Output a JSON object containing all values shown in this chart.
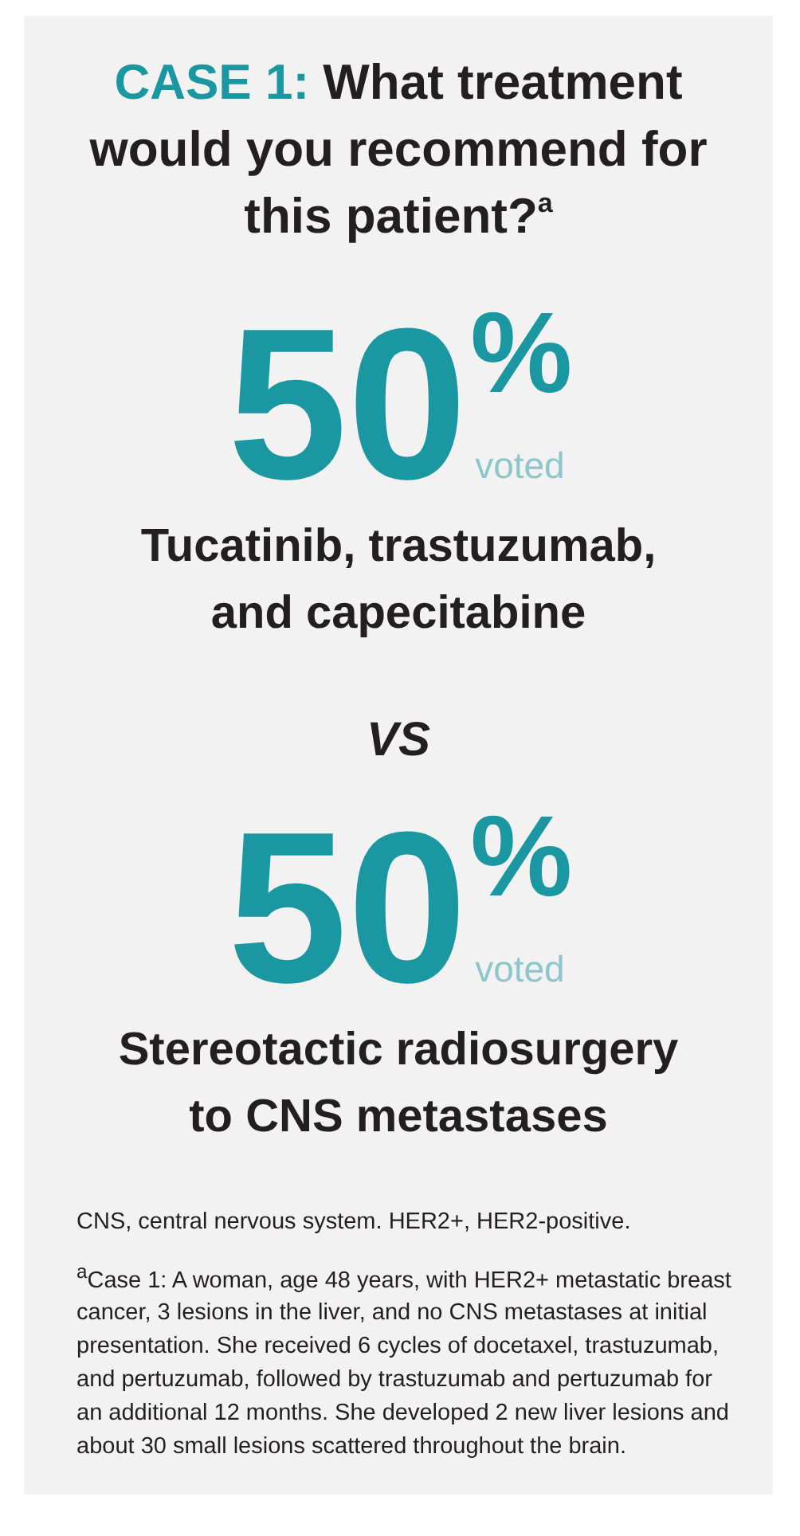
{
  "chart_data": {
    "type": "other",
    "title": "CASE 1: What treatment would you recommend for this patient?$^{a}$",
    "categories": [
      "Tucatinib, trastuzumab, and capecitabine",
      "Stereotactic radiosurgery to CNS metastases"
    ],
    "values": [
      50,
      50
    ],
    "data_labels": true,
    "colors": [
      "#1a97a0",
      "#1a97a0"
    ],
    "annotations": [
      {
        "text": "%",
        "x": "Tucatinib, trastuzumab, and capecitabine"
      },
      {
        "text": "voted",
        "x": "Tucatinib, trastuzumab, and capecitabine"
      },
      "VS",
      {
        "text": "%",
        "x": "Stereotactic radiosurgery to CNS metastases"
      },
      {
        "text": "voted",
        "x": "Stereotactic radiosurgery to CNS metastases"
      },
      "CNS, central nervous system. HER2+, HER2-positive.",
      "$^{a}$Case 1: A woman, age 48 years, with HER2+ metastatic breast cancer, 3 lesions in the liver, and no CNS metastases at initial presentation. She received 6 cycles of docetaxel, trastuzumab, and pertuzumab, followed by trastuzumab and pertuzumab for an additional 12 months. She developed 2 new liver lesions and about 30 small lesions scattered throughout the brain."
    ]
  }
}
